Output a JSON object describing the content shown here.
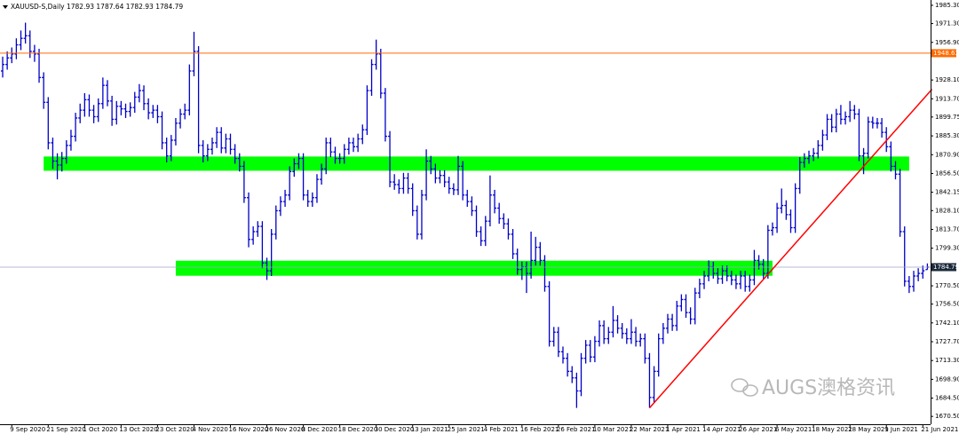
{
  "chart_data": {
    "type": "ohlc",
    "title": "XAUUSD-S,Daily  1782.93 1787.64 1782.93 1784.79",
    "watermark": "AUGS澳格资讯",
    "color": "#0000c8",
    "ylim": [
      1664.5,
      1988.0
    ],
    "yticks": [
      {
        "value": 1985.3,
        "label": "1985.30"
      },
      {
        "value": 1971.3,
        "label": "1971.30"
      },
      {
        "value": 1956.9,
        "label": "1956.90"
      },
      {
        "value": 1928.1,
        "label": "1928.10"
      },
      {
        "value": 1913.7,
        "label": "1913.70"
      },
      {
        "value": 1899.75,
        "label": "1899.75"
      },
      {
        "value": 1885.3,
        "label": "1885.30"
      },
      {
        "value": 1870.9,
        "label": "1870.90"
      },
      {
        "value": 1856.5,
        "label": "1856.50"
      },
      {
        "value": 1842.15,
        "label": "1842.15"
      },
      {
        "value": 1828.1,
        "label": "1828.10"
      },
      {
        "value": 1813.7,
        "label": "1813.70"
      },
      {
        "value": 1799.3,
        "label": "1799.30"
      },
      {
        "value": 1770.5,
        "label": "1770.50"
      },
      {
        "value": 1756.5,
        "label": "1756.50"
      },
      {
        "value": 1742.1,
        "label": "1742.10"
      },
      {
        "value": 1727.7,
        "label": "1727.70"
      },
      {
        "value": 1713.3,
        "label": "1713.30"
      },
      {
        "value": 1698.9,
        "label": "1698.90"
      },
      {
        "value": 1684.5,
        "label": "1684.50"
      },
      {
        "value": 1670.5,
        "label": "1670.50"
      }
    ],
    "hlines": [
      {
        "value": 1948.63,
        "color": "#ff6a00"
      }
    ],
    "zones": [
      {
        "low": 1858.6,
        "high": 1869.5,
        "from": 9,
        "to": 199,
        "color": "#00ff00"
      },
      {
        "low": 1778.2,
        "high": 1789.7,
        "from": 38,
        "to": 169,
        "color": "#00ff00"
      }
    ],
    "trendline": {
      "x": [
        142,
        204
      ],
      "y": [
        1677,
        1921
      ],
      "color": "#ff0000"
    },
    "categories": [
      null,
      null,
      "9 Sep 2020",
      null,
      null,
      null,
      null,
      null,
      null,
      null,
      "21 Sep 2020",
      null,
      null,
      null,
      null,
      null,
      null,
      null,
      "1 Oct 2020",
      null,
      null,
      null,
      null,
      null,
      null,
      null,
      "13 Oct 2020",
      null,
      null,
      null,
      null,
      null,
      null,
      null,
      "23 Oct 2020",
      null,
      null,
      null,
      null,
      null,
      null,
      null,
      "4 Nov 2020",
      null,
      null,
      null,
      null,
      null,
      null,
      null,
      "16 Nov 2020",
      null,
      null,
      null,
      null,
      null,
      null,
      null,
      "26 Nov 2020",
      null,
      null,
      null,
      null,
      null,
      null,
      null,
      "8 Dec 2020",
      null,
      null,
      null,
      null,
      null,
      null,
      null,
      "18 Dec 2020",
      null,
      null,
      null,
      null,
      null,
      null,
      null,
      "30 Dec 2020",
      null,
      null,
      null,
      null,
      null,
      null,
      null,
      "13 Jan 2021",
      null,
      null,
      null,
      null,
      null,
      null,
      null,
      "25 Jan 2021",
      null,
      null,
      null,
      null,
      null,
      null,
      null,
      "4 Feb 2021",
      null,
      null,
      null,
      null,
      null,
      null,
      null,
      "16 Feb 2021",
      null,
      null,
      null,
      null,
      null,
      null,
      null,
      "26 Feb 2021",
      null,
      null,
      null,
      null,
      null,
      null,
      null,
      "10 Mar 2021",
      null,
      null,
      null,
      null,
      null,
      null,
      null,
      "22 Mar 2021",
      null,
      null,
      null,
      null,
      null,
      null,
      null,
      "1 Apr 2021",
      null,
      null,
      null,
      null,
      null,
      null,
      null,
      "14 Apr 2021",
      null,
      null,
      null,
      null,
      null,
      null,
      null,
      "26 Apr 2021",
      null,
      null,
      null,
      null,
      null,
      null,
      null,
      "6 May 2021",
      null,
      null,
      null,
      null,
      null,
      null,
      null,
      "18 May 2021",
      null,
      null,
      null,
      null,
      null,
      null,
      null,
      "28 May 2021",
      null,
      null,
      null,
      null,
      null,
      null,
      null,
      "9 Jun 2021",
      null,
      null,
      null,
      null,
      null,
      null,
      null,
      "21 Jun 2021",
      null
    ],
    "bars": [
      [
        1935,
        1946,
        1930,
        1940
      ],
      [
        1940,
        1950,
        1936,
        1945
      ],
      [
        1945,
        1953,
        1941,
        1948
      ],
      [
        1948,
        1960,
        1944,
        1955
      ],
      [
        1955,
        1966,
        1951,
        1960
      ],
      [
        1960,
        1972,
        1956,
        1962
      ],
      [
        1962,
        1966,
        1945,
        1950
      ],
      [
        1950,
        1955,
        1942,
        1948
      ],
      [
        1948,
        1952,
        1926,
        1930
      ],
      [
        1930,
        1934,
        1906,
        1911
      ],
      [
        1911,
        1915,
        1875,
        1880
      ],
      [
        1880,
        1884,
        1860,
        1866
      ],
      [
        1866,
        1872,
        1852,
        1863
      ],
      [
        1863,
        1873,
        1858,
        1868
      ],
      [
        1868,
        1882,
        1864,
        1878
      ],
      [
        1878,
        1890,
        1874,
        1885
      ],
      [
        1885,
        1903,
        1881,
        1899
      ],
      [
        1899,
        1910,
        1895,
        1905
      ],
      [
        1905,
        1918,
        1900,
        1913
      ],
      [
        1913,
        1917,
        1900,
        1905
      ],
      [
        1905,
        1909,
        1895,
        1900
      ],
      [
        1900,
        1914,
        1896,
        1910
      ],
      [
        1910,
        1930,
        1906,
        1924
      ],
      [
        1924,
        1928,
        1908,
        1912
      ],
      [
        1912,
        1916,
        1893,
        1898
      ],
      [
        1898,
        1912,
        1894,
        1908
      ],
      [
        1908,
        1912,
        1901,
        1906
      ],
      [
        1906,
        1910,
        1899,
        1904
      ],
      [
        1904,
        1911,
        1900,
        1907
      ],
      [
        1907,
        1919,
        1903,
        1915
      ],
      [
        1915,
        1925,
        1911,
        1920
      ],
      [
        1920,
        1924,
        1905,
        1910
      ],
      [
        1910,
        1914,
        1898,
        1903
      ],
      [
        1903,
        1909,
        1899,
        1905
      ],
      [
        1905,
        1909,
        1895,
        1900
      ],
      [
        1900,
        1904,
        1875,
        1880
      ],
      [
        1880,
        1884,
        1865,
        1870
      ],
      [
        1870,
        1886,
        1866,
        1882
      ],
      [
        1882,
        1899,
        1878,
        1895
      ],
      [
        1895,
        1906,
        1891,
        1902
      ],
      [
        1902,
        1910,
        1898,
        1905
      ],
      [
        1905,
        1940,
        1901,
        1935
      ],
      [
        1935,
        1965,
        1931,
        1950
      ],
      [
        1950,
        1954,
        1872,
        1878
      ],
      [
        1878,
        1882,
        1865,
        1870
      ],
      [
        1870,
        1879,
        1866,
        1875
      ],
      [
        1875,
        1884,
        1871,
        1880
      ],
      [
        1880,
        1892,
        1876,
        1888
      ],
      [
        1888,
        1892,
        1872,
        1876
      ],
      [
        1876,
        1887,
        1872,
        1883
      ],
      [
        1883,
        1887,
        1871,
        1875
      ],
      [
        1875,
        1879,
        1864,
        1868
      ],
      [
        1868,
        1872,
        1858,
        1862
      ],
      [
        1862,
        1866,
        1834,
        1838
      ],
      [
        1838,
        1842,
        1800,
        1806
      ],
      [
        1806,
        1816,
        1802,
        1812
      ],
      [
        1812,
        1820,
        1808,
        1816
      ],
      [
        1816,
        1820,
        1784,
        1788
      ],
      [
        1788,
        1792,
        1775,
        1782
      ],
      [
        1782,
        1814,
        1778,
        1810
      ],
      [
        1810,
        1832,
        1806,
        1828
      ],
      [
        1828,
        1839,
        1824,
        1835
      ],
      [
        1835,
        1844,
        1831,
        1840
      ],
      [
        1840,
        1862,
        1836,
        1858
      ],
      [
        1858,
        1868,
        1854,
        1864
      ],
      [
        1864,
        1872,
        1860,
        1868
      ],
      [
        1868,
        1872,
        1836,
        1840
      ],
      [
        1840,
        1844,
        1831,
        1835
      ],
      [
        1835,
        1842,
        1831,
        1838
      ],
      [
        1838,
        1856,
        1834,
        1852
      ],
      [
        1852,
        1864,
        1848,
        1860
      ],
      [
        1860,
        1884,
        1856,
        1880
      ],
      [
        1880,
        1884,
        1869,
        1873
      ],
      [
        1873,
        1877,
        1864,
        1868
      ],
      [
        1868,
        1872,
        1864,
        1868
      ],
      [
        1868,
        1879,
        1864,
        1875
      ],
      [
        1875,
        1884,
        1871,
        1880
      ],
      [
        1880,
        1884,
        1873,
        1877
      ],
      [
        1877,
        1887,
        1873,
        1883
      ],
      [
        1883,
        1894,
        1879,
        1890
      ],
      [
        1890,
        1924,
        1886,
        1920
      ],
      [
        1920,
        1944,
        1916,
        1940
      ],
      [
        1940,
        1959,
        1936,
        1948
      ],
      [
        1948,
        1952,
        1914,
        1918
      ],
      [
        1918,
        1922,
        1881,
        1885
      ],
      [
        1885,
        1889,
        1846,
        1850
      ],
      [
        1850,
        1856,
        1844,
        1848
      ],
      [
        1848,
        1852,
        1841,
        1845
      ],
      [
        1845,
        1857,
        1841,
        1853
      ],
      [
        1853,
        1857,
        1841,
        1845
      ],
      [
        1845,
        1849,
        1824,
        1828
      ],
      [
        1828,
        1832,
        1806,
        1810
      ],
      [
        1810,
        1844,
        1806,
        1840
      ],
      [
        1840,
        1875,
        1836,
        1866
      ],
      [
        1866,
        1870,
        1856,
        1860
      ],
      [
        1860,
        1864,
        1849,
        1853
      ],
      [
        1853,
        1859,
        1849,
        1855
      ],
      [
        1855,
        1859,
        1846,
        1850
      ],
      [
        1850,
        1854,
        1841,
        1845
      ],
      [
        1845,
        1849,
        1840,
        1844
      ],
      [
        1844,
        1870,
        1840,
        1862
      ],
      [
        1862,
        1866,
        1836,
        1840
      ],
      [
        1840,
        1844,
        1831,
        1835
      ],
      [
        1835,
        1839,
        1824,
        1828
      ],
      [
        1828,
        1832,
        1808,
        1812
      ],
      [
        1812,
        1816,
        1801,
        1805
      ],
      [
        1805,
        1824,
        1801,
        1820
      ],
      [
        1820,
        1855,
        1816,
        1840
      ],
      [
        1840,
        1844,
        1826,
        1830
      ],
      [
        1830,
        1834,
        1818,
        1822
      ],
      [
        1822,
        1826,
        1814,
        1818
      ],
      [
        1818,
        1822,
        1806,
        1810
      ],
      [
        1810,
        1814,
        1791,
        1795
      ],
      [
        1795,
        1799,
        1779,
        1783
      ],
      [
        1783,
        1789,
        1775,
        1785
      ],
      [
        1785,
        1789,
        1765,
        1780
      ],
      [
        1780,
        1812,
        1776,
        1790
      ],
      [
        1790,
        1808,
        1786,
        1800
      ],
      [
        1800,
        1804,
        1786,
        1790
      ],
      [
        1790,
        1794,
        1766,
        1770
      ],
      [
        1770,
        1774,
        1724,
        1728
      ],
      [
        1728,
        1739,
        1724,
        1735
      ],
      [
        1735,
        1739,
        1716,
        1720
      ],
      [
        1720,
        1724,
        1711,
        1715
      ],
      [
        1715,
        1719,
        1701,
        1705
      ],
      [
        1705,
        1709,
        1696,
        1700
      ],
      [
        1700,
        1704,
        1677,
        1690
      ],
      [
        1690,
        1719,
        1686,
        1715
      ],
      [
        1715,
        1729,
        1711,
        1725
      ],
      [
        1725,
        1729,
        1712,
        1716
      ],
      [
        1716,
        1732,
        1712,
        1728
      ],
      [
        1728,
        1744,
        1724,
        1740
      ],
      [
        1740,
        1744,
        1726,
        1730
      ],
      [
        1730,
        1739,
        1726,
        1735
      ],
      [
        1735,
        1755,
        1731,
        1744
      ],
      [
        1744,
        1748,
        1734,
        1738
      ],
      [
        1738,
        1742,
        1730,
        1734
      ],
      [
        1734,
        1738,
        1726,
        1730
      ],
      [
        1730,
        1745,
        1726,
        1735
      ],
      [
        1735,
        1739,
        1724,
        1728
      ],
      [
        1728,
        1734,
        1724,
        1730
      ],
      [
        1730,
        1734,
        1711,
        1715
      ],
      [
        1715,
        1719,
        1677,
        1685
      ],
      [
        1685,
        1709,
        1681,
        1705
      ],
      [
        1705,
        1734,
        1701,
        1730
      ],
      [
        1730,
        1742,
        1726,
        1738
      ],
      [
        1738,
        1749,
        1734,
        1745
      ],
      [
        1745,
        1749,
        1736,
        1740
      ],
      [
        1740,
        1759,
        1736,
        1755
      ],
      [
        1755,
        1764,
        1751,
        1760
      ],
      [
        1760,
        1764,
        1746,
        1750
      ],
      [
        1750,
        1754,
        1741,
        1745
      ],
      [
        1745,
        1769,
        1741,
        1765
      ],
      [
        1765,
        1776,
        1761,
        1772
      ],
      [
        1772,
        1782,
        1768,
        1778
      ],
      [
        1778,
        1790,
        1774,
        1785
      ],
      [
        1785,
        1789,
        1776,
        1780
      ],
      [
        1780,
        1784,
        1772,
        1776
      ],
      [
        1776,
        1786,
        1772,
        1782
      ],
      [
        1782,
        1786,
        1774,
        1778
      ],
      [
        1778,
        1782,
        1771,
        1775
      ],
      [
        1775,
        1779,
        1768,
        1772
      ],
      [
        1772,
        1782,
        1768,
        1778
      ],
      [
        1778,
        1782,
        1766,
        1770
      ],
      [
        1770,
        1779,
        1766,
        1775
      ],
      [
        1775,
        1798,
        1771,
        1790
      ],
      [
        1790,
        1794,
        1783,
        1787
      ],
      [
        1787,
        1791,
        1776,
        1780
      ],
      [
        1780,
        1817,
        1776,
        1813
      ],
      [
        1813,
        1819,
        1809,
        1815
      ],
      [
        1815,
        1834,
        1811,
        1830
      ],
      [
        1830,
        1845,
        1826,
        1832
      ],
      [
        1832,
        1836,
        1821,
        1825
      ],
      [
        1825,
        1829,
        1811,
        1815
      ],
      [
        1815,
        1849,
        1811,
        1845
      ],
      [
        1845,
        1869,
        1841,
        1865
      ],
      [
        1865,
        1872,
        1861,
        1868
      ],
      [
        1868,
        1874,
        1864,
        1870
      ],
      [
        1870,
        1876,
        1866,
        1872
      ],
      [
        1872,
        1882,
        1868,
        1878
      ],
      [
        1878,
        1890,
        1874,
        1886
      ],
      [
        1886,
        1902,
        1882,
        1898
      ],
      [
        1898,
        1902,
        1888,
        1892
      ],
      [
        1892,
        1906,
        1888,
        1902
      ],
      [
        1902,
        1909,
        1894,
        1898
      ],
      [
        1898,
        1904,
        1894,
        1900
      ],
      [
        1900,
        1912,
        1896,
        1905
      ],
      [
        1905,
        1909,
        1898,
        1902
      ],
      [
        1902,
        1906,
        1866,
        1870
      ],
      [
        1870,
        1876,
        1856,
        1872
      ],
      [
        1872,
        1900,
        1868,
        1896
      ],
      [
        1896,
        1900,
        1891,
        1895
      ],
      [
        1895,
        1899,
        1891,
        1895
      ],
      [
        1895,
        1899,
        1884,
        1888
      ],
      [
        1888,
        1892,
        1873,
        1877
      ],
      [
        1877,
        1881,
        1858,
        1862
      ],
      [
        1862,
        1866,
        1852,
        1856
      ],
      [
        1856,
        1860,
        1808,
        1812
      ],
      [
        1812,
        1816,
        1770,
        1774
      ],
      [
        1774,
        1778,
        1765,
        1770
      ],
      [
        1770,
        1782,
        1766,
        1778
      ],
      [
        1778,
        1784,
        1774,
        1780
      ],
      [
        1780,
        1786,
        1776,
        1782
      ],
      [
        1782.93,
        1787.64,
        1782.93,
        1784.79
      ]
    ]
  }
}
